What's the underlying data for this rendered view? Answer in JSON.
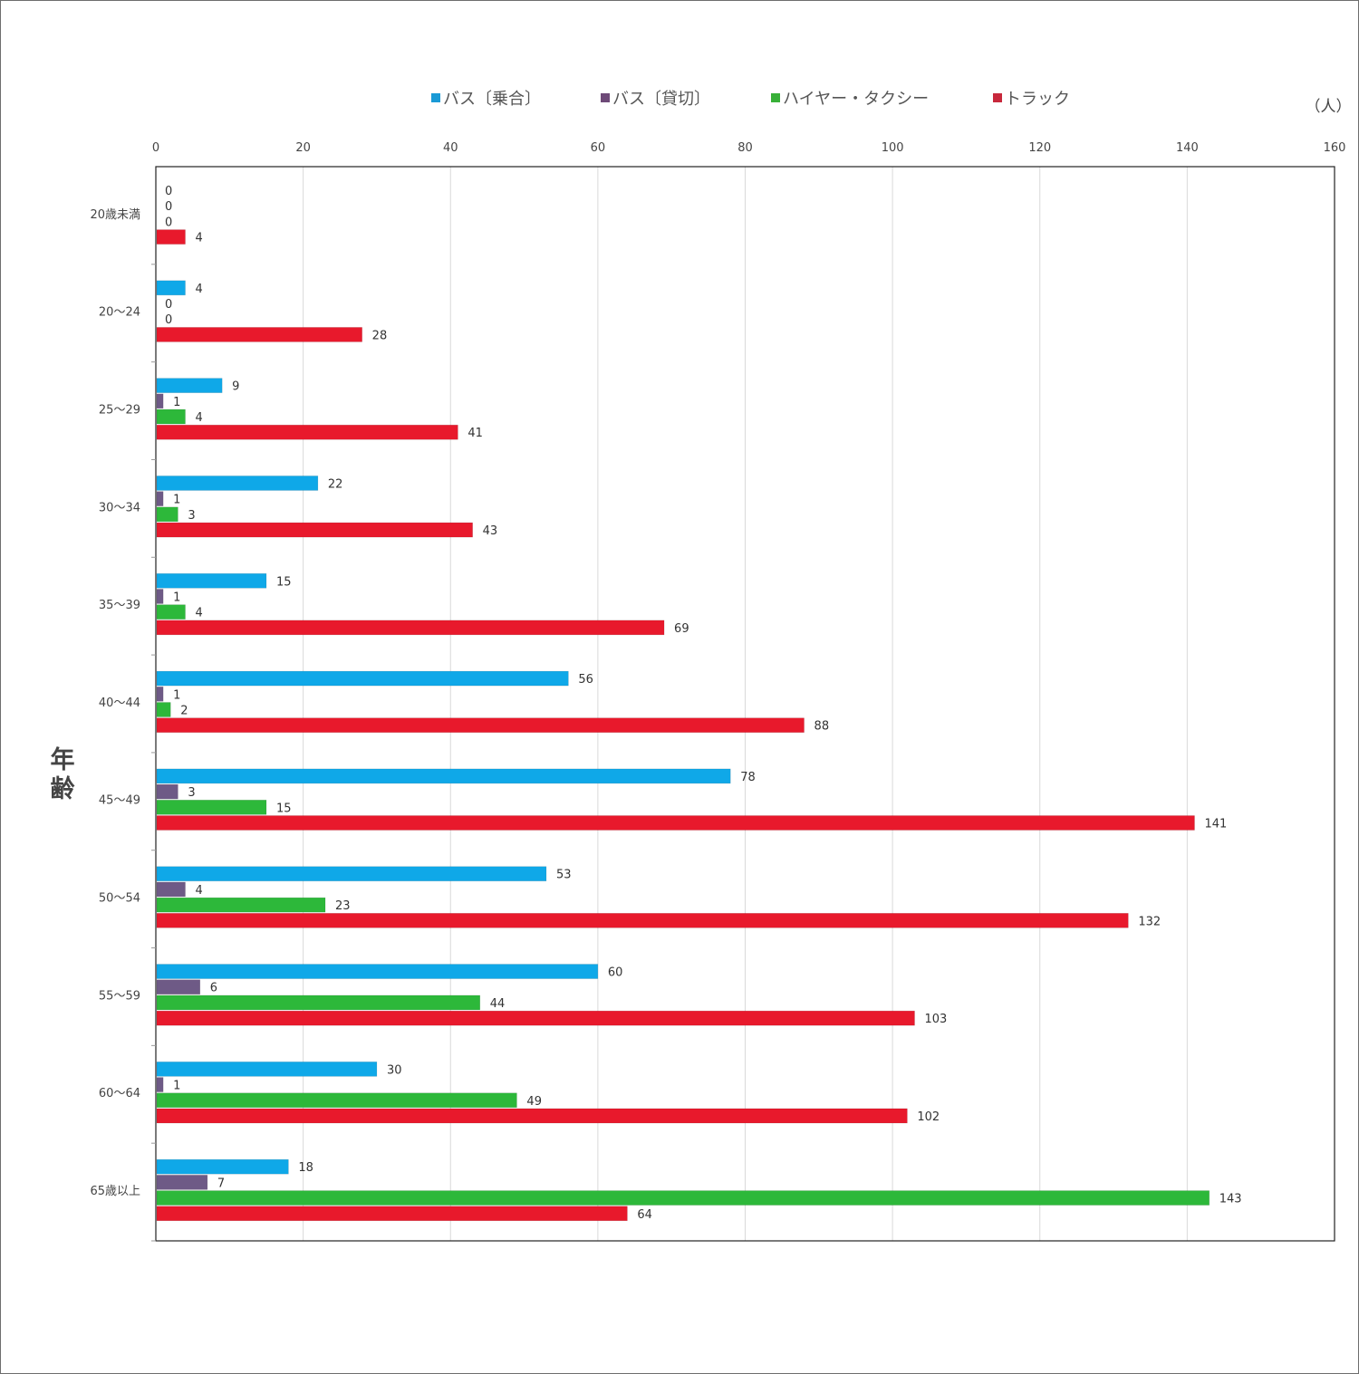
{
  "chart_data": {
    "type": "bar",
    "orientation": "horizontal",
    "categories": [
      "20歳未満",
      "20～24",
      "25～29",
      "30～34",
      "35～39",
      "40～44",
      "45～49",
      "50～54",
      "55～59",
      "60～64",
      "65歳以上"
    ],
    "series": [
      {
        "name": "バス〔乗合〕",
        "color": "#0fa8e8",
        "values": [
          0,
          4,
          9,
          22,
          15,
          56,
          78,
          53,
          60,
          30,
          18
        ]
      },
      {
        "name": "バス〔貸切〕",
        "color": "#6e5a86",
        "values": [
          0,
          0,
          1,
          1,
          1,
          1,
          3,
          4,
          6,
          1,
          7
        ]
      },
      {
        "name": "ハイヤー・タクシー",
        "color": "#2db83a",
        "values": [
          0,
          0,
          4,
          3,
          4,
          2,
          15,
          23,
          44,
          49,
          143
        ]
      },
      {
        "name": "トラック",
        "color": "#e8192c",
        "values": [
          4,
          28,
          41,
          43,
          69,
          88,
          141,
          132,
          103,
          102,
          64
        ]
      }
    ],
    "legend_colors": [
      "#1a9ad6",
      "#6e4a78",
      "#38b038",
      "#c8283c"
    ],
    "xlim": [
      0,
      160
    ],
    "xticks": [
      "0",
      "20",
      "40",
      "60",
      "80",
      "100",
      "120",
      "140",
      "160"
    ],
    "xlabel": "",
    "unit_label": "（人）",
    "ylabel": "年齢",
    "legend_position": "top",
    "grid": true,
    "title": ""
  }
}
